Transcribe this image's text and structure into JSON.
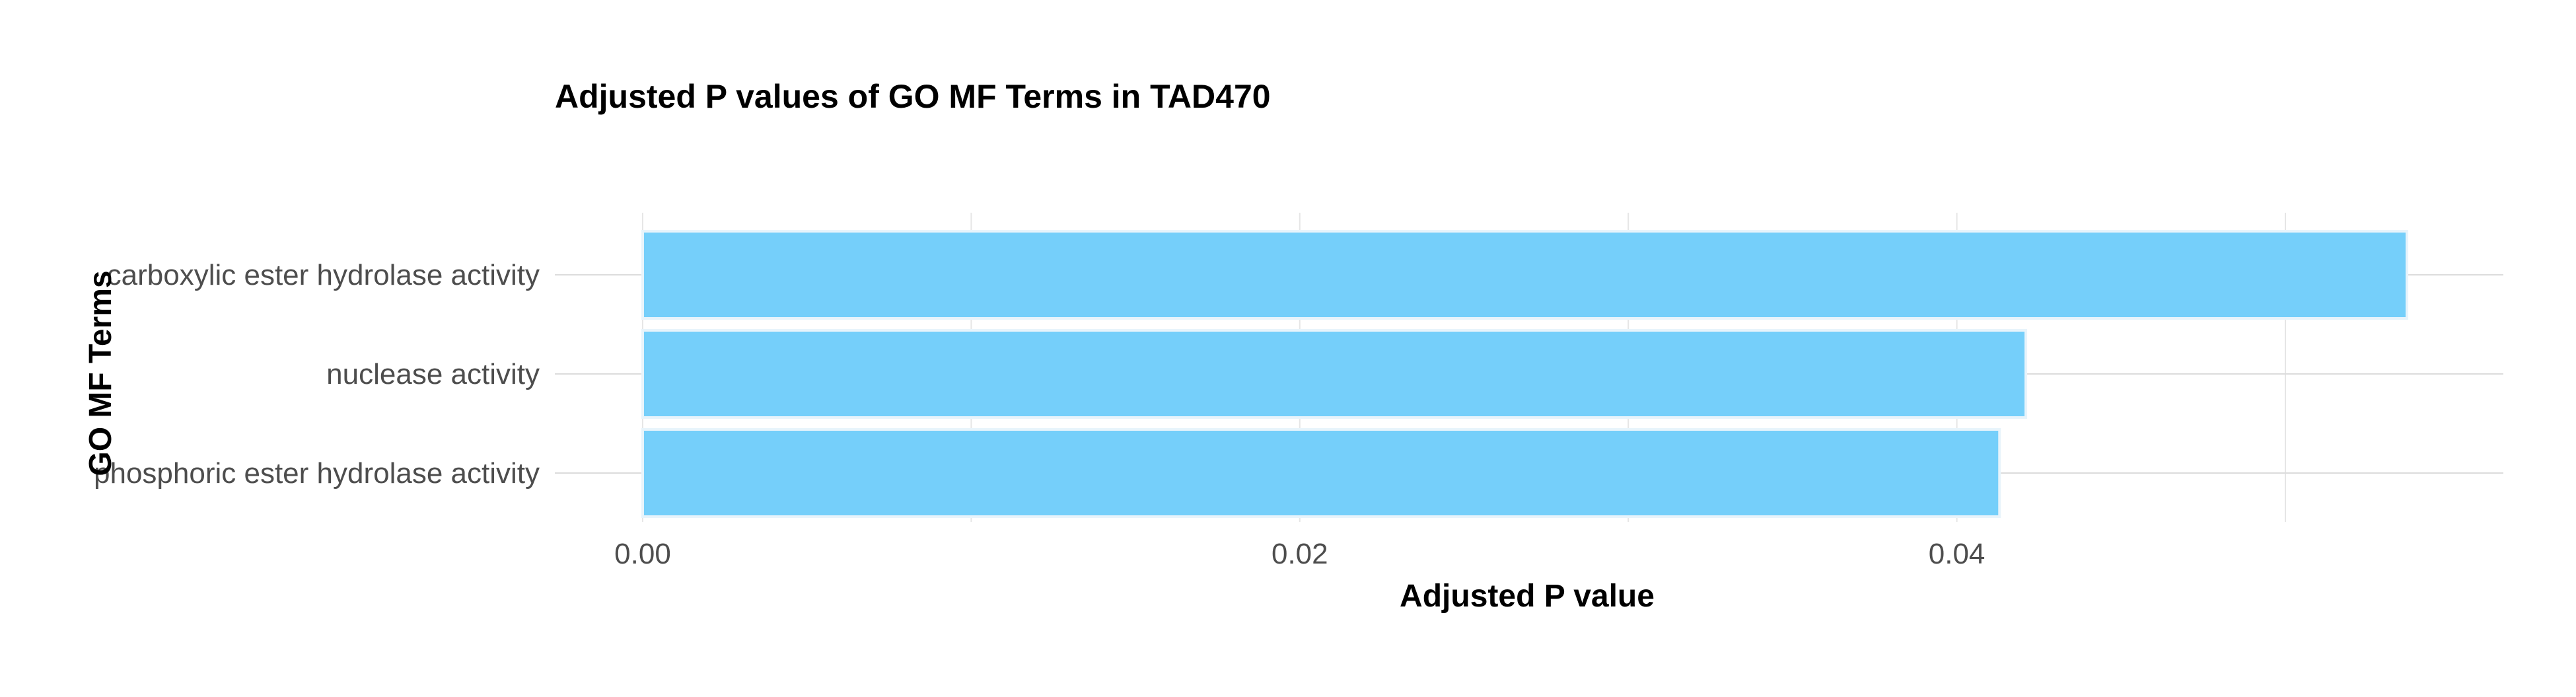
{
  "chart_data": {
    "type": "bar",
    "orientation": "horizontal",
    "title": "Adjusted P values of GO MF Terms in TAD470",
    "xlabel": "Adjusted P value",
    "ylabel": "GO MF Terms",
    "categories": [
      "carboxylic ester hydrolase activity",
      "nuclease activity",
      "phosphoric ester hydrolase activity"
    ],
    "values": [
      0.0537,
      0.0421,
      0.0413
    ],
    "xlim": [
      0,
      0.0565
    ],
    "xticks": [
      0,
      0.02,
      0.04
    ],
    "xtick_labels": [
      "0.00",
      "0.02",
      "0.04"
    ],
    "grid": true,
    "bar_color": "#75cffa",
    "bar_edge_color": "#e8f4fb"
  }
}
